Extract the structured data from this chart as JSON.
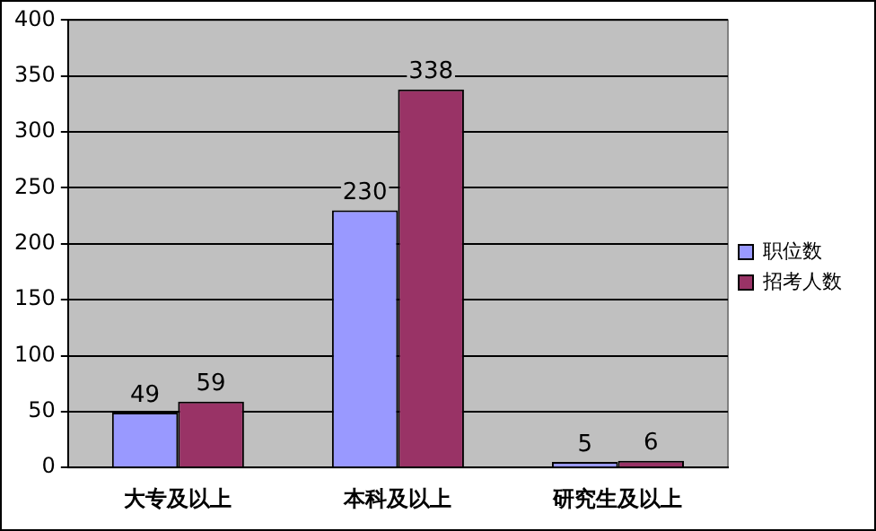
{
  "chart_data": {
    "type": "bar",
    "categories": [
      "大专及以上",
      "本科及以上",
      "研究生及以上"
    ],
    "series": [
      {
        "name": "职位数",
        "color": "#9999ff",
        "values": [
          49,
          230,
          5
        ]
      },
      {
        "name": "招考人数",
        "color": "#993366",
        "values": [
          59,
          338,
          6
        ]
      }
    ],
    "ylim": [
      0,
      400
    ],
    "yticks": [
      0,
      50,
      100,
      150,
      200,
      250,
      300,
      350,
      400
    ],
    "grid": "y",
    "legend": "right",
    "data_labels": true
  }
}
